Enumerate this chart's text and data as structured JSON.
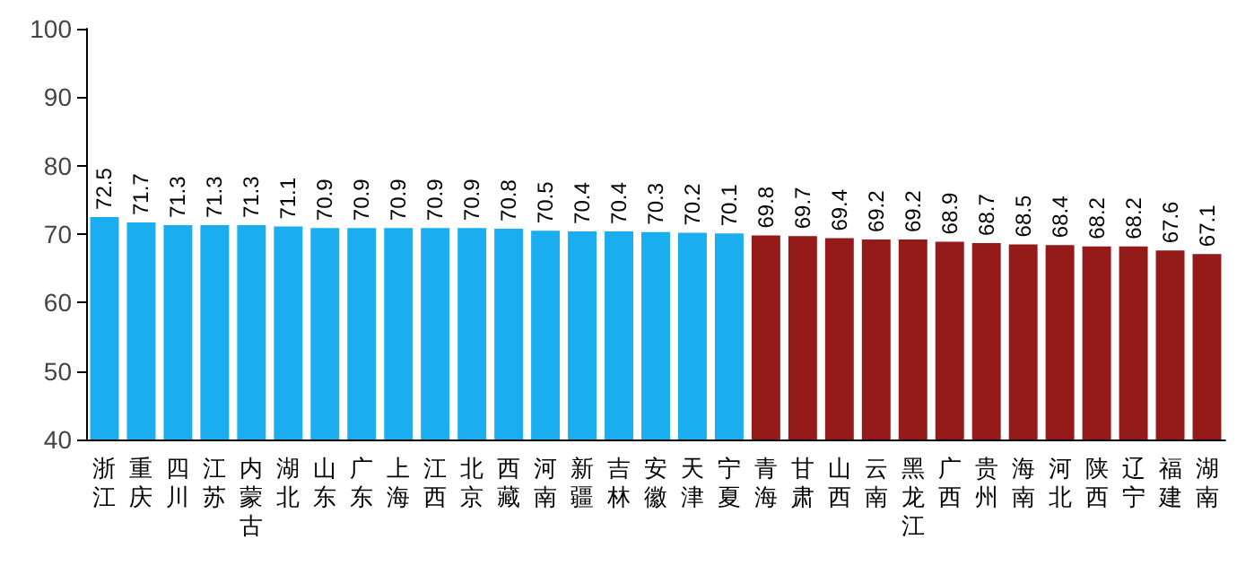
{
  "chart_data": {
    "type": "bar",
    "categories": [
      "浙江",
      "重庆",
      "四川",
      "江苏",
      "内蒙古",
      "湖北",
      "山东",
      "广东",
      "上海",
      "江西",
      "北京",
      "西藏",
      "河南",
      "新疆",
      "吉林",
      "安徽",
      "天津",
      "宁夏",
      "青海",
      "甘肃",
      "山西",
      "云南",
      "黑龙江",
      "广西",
      "贵州",
      "海南",
      "河北",
      "陕西",
      "辽宁",
      "福建",
      "湖南"
    ],
    "values": [
      72.5,
      71.7,
      71.3,
      71.3,
      71.3,
      71.1,
      70.9,
      70.9,
      70.9,
      70.9,
      70.9,
      70.8,
      70.5,
      70.4,
      70.4,
      70.3,
      70.2,
      70.1,
      69.8,
      69.7,
      69.4,
      69.2,
      69.2,
      68.9,
      68.7,
      68.5,
      68.4,
      68.2,
      68.2,
      67.6,
      67.1
    ],
    "colors": [
      "#1aaef0",
      "#1aaef0",
      "#1aaef0",
      "#1aaef0",
      "#1aaef0",
      "#1aaef0",
      "#1aaef0",
      "#1aaef0",
      "#1aaef0",
      "#1aaef0",
      "#1aaef0",
      "#1aaef0",
      "#1aaef0",
      "#1aaef0",
      "#1aaef0",
      "#1aaef0",
      "#1aaef0",
      "#1aaef0",
      "#951b1b",
      "#951b1b",
      "#951b1b",
      "#951b1b",
      "#951b1b",
      "#951b1b",
      "#951b1b",
      "#951b1b",
      "#951b1b",
      "#951b1b",
      "#951b1b",
      "#951b1b",
      "#951b1b"
    ],
    "ylim": [
      40,
      100
    ],
    "yticks": [
      40,
      50,
      60,
      70,
      80,
      90,
      100
    ],
    "grid": false,
    "data_labels": true
  }
}
